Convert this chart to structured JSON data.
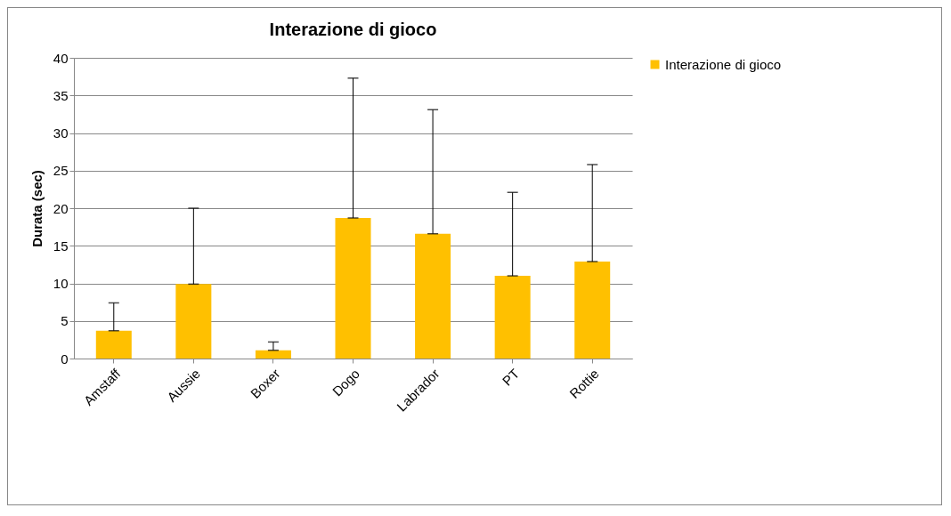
{
  "chart_data": {
    "type": "bar",
    "title": "Interazione di gioco",
    "ylabel": "Durata (sec)",
    "categories": [
      "Amstaff",
      "Aussie",
      "Boxer",
      "Dogo",
      "Labrador",
      "PT",
      "Rottie"
    ],
    "series": [
      {
        "name": "Interazione di gioco",
        "color": "#ffc000",
        "values": [
          3.7,
          9.9,
          1.1,
          18.7,
          16.6,
          11.0,
          12.9
        ],
        "errors": [
          [
            3.7,
            7.4
          ],
          [
            9.9,
            20.0
          ],
          [
            1.1,
            2.2
          ],
          [
            18.7,
            37.3
          ],
          [
            16.6,
            33.1
          ],
          [
            11.0,
            22.1
          ],
          [
            12.9,
            25.8
          ]
        ]
      }
    ],
    "ylim": [
      0,
      40
    ],
    "yticks": [
      0,
      5,
      10,
      15,
      20,
      25,
      30,
      35,
      40
    ],
    "grid": "y",
    "legend": "right"
  }
}
